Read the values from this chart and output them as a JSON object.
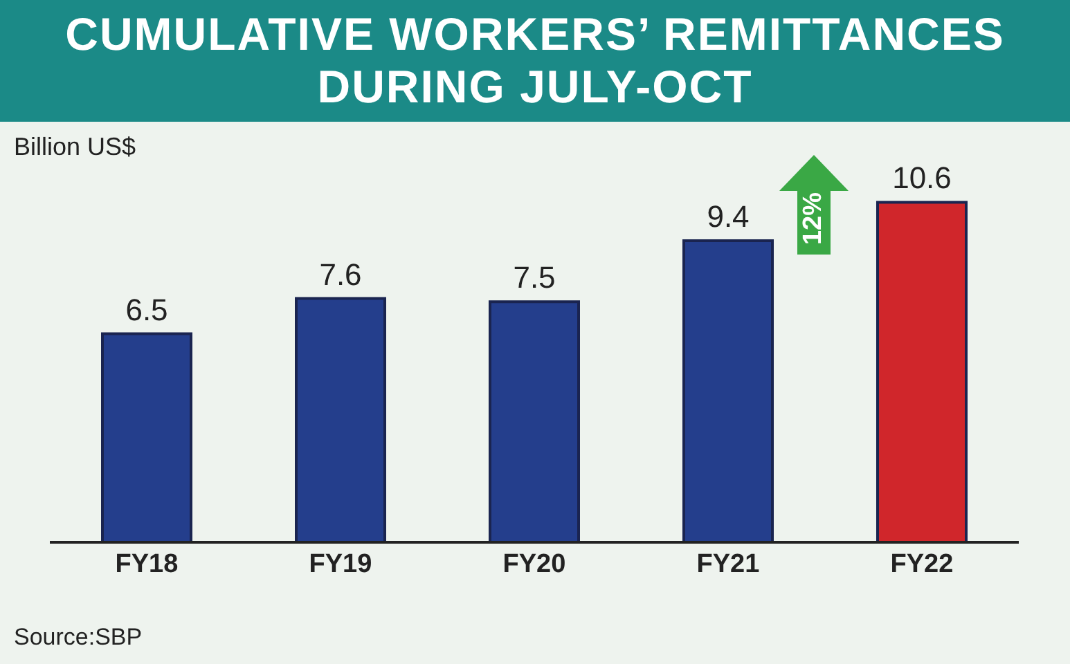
{
  "chart_data": {
    "type": "bar",
    "title": "CUMULATIVE WORKERS’ REMITTANCES\nDURING JULY-OCT",
    "ylabel": "Billion US$",
    "categories": [
      "FY18",
      "FY19",
      "FY20",
      "FY21",
      "FY22"
    ],
    "values": [
      6.5,
      7.6,
      7.5,
      9.4,
      10.6
    ],
    "colors": [
      "#243e8c",
      "#243e8c",
      "#243e8c",
      "#243e8c",
      "#d0262b"
    ],
    "data_labels": true,
    "tick_labels": "x",
    "annotations": [
      "12%",
      "Source:SBP"
    ]
  }
}
